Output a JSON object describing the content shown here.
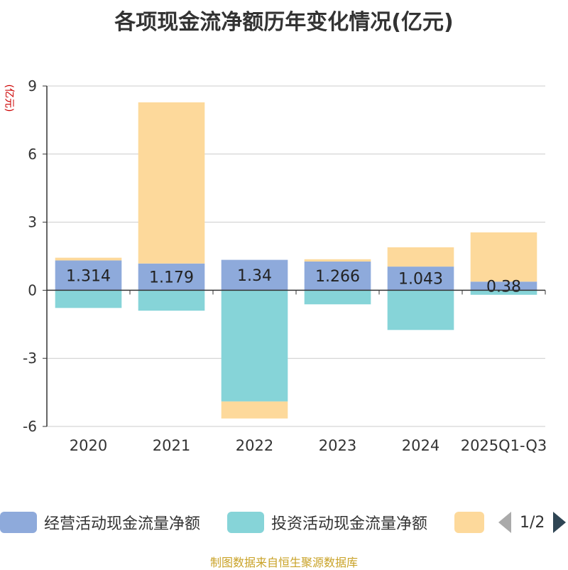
{
  "chart_data": {
    "type": "bar",
    "stacked": true,
    "title": "各项现金流净额历年变化情况(亿元)",
    "ylabel": "(亿元)",
    "ylim": [
      -6,
      9
    ],
    "yticks": [
      9,
      6,
      3,
      0,
      -3,
      -6
    ],
    "categories": [
      "2020",
      "2021",
      "2022",
      "2023",
      "2024",
      "2025Q1-Q3"
    ],
    "series": [
      {
        "name": "经营活动现金流量净额",
        "color": "#8eaadb",
        "values": [
          1.314,
          1.179,
          1.34,
          1.266,
          1.043,
          0.38
        ]
      },
      {
        "name": "投资活动现金流量净额",
        "color": "#86d4d8",
        "values": [
          -0.78,
          -0.9,
          -4.9,
          -0.62,
          -1.75,
          -0.2
        ]
      },
      {
        "name": "",
        "color": "#fdd99b",
        "values": [
          0.12,
          7.1,
          -0.75,
          0.1,
          0.85,
          2.17
        ]
      }
    ],
    "data_labels": [
      "1.314",
      "1.179",
      "1.34",
      "1.266",
      "1.043",
      "0.38"
    ],
    "grid": true
  },
  "legend": {
    "page": "1/2"
  },
  "source": "制图数据来自恒生聚源数据库"
}
